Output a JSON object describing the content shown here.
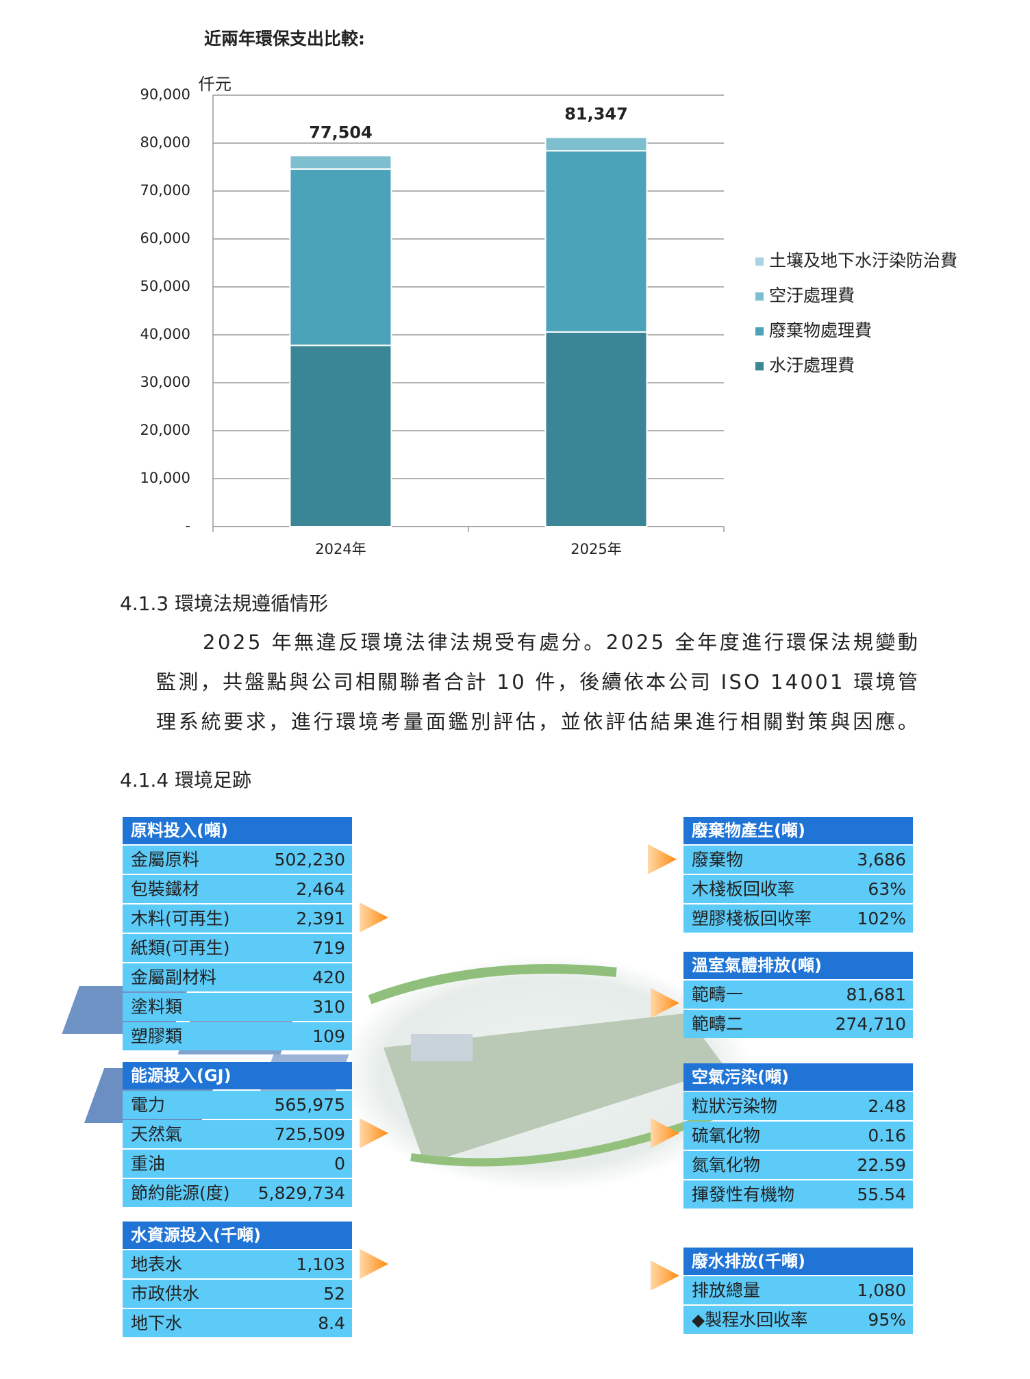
{
  "chart_data": {
    "type": "stacked_bar",
    "title": "近兩年環保支出比較:",
    "y_label": "仟元",
    "categories": [
      "2024年",
      "2025年"
    ],
    "series": [
      {
        "name": "水汙處理費",
        "color": "#3a8696",
        "values": [
          37800,
          40600
        ]
      },
      {
        "name": "廢棄物處理費",
        "color": "#4aa3b9",
        "values": [
          36800,
          37800
        ]
      },
      {
        "name": "空汙處理費",
        "color": "#7dbfcf",
        "values": [
          2800,
          2800
        ]
      },
      {
        "name": "土壤及地下水汙染防治費",
        "color": "#a9d5e2",
        "values": [
          104,
          147
        ]
      }
    ],
    "totals": [
      77504,
      81347
    ],
    "total_labels": [
      "77,504",
      "81,347"
    ],
    "ylim": [
      0,
      90000
    ],
    "yticks": [
      {
        "value": 0,
        "label": "-"
      },
      {
        "value": 10000,
        "label": "10,000"
      },
      {
        "value": 20000,
        "label": "20,000"
      },
      {
        "value": 30000,
        "label": "30,000"
      },
      {
        "value": 40000,
        "label": "40,000"
      },
      {
        "value": 50000,
        "label": "50,000"
      },
      {
        "value": 60000,
        "label": "60,000"
      },
      {
        "value": 70000,
        "label": "70,000"
      },
      {
        "value": 80000,
        "label": "80,000"
      },
      {
        "value": 90000,
        "label": "90,000"
      }
    ],
    "grid": true,
    "legend": "right"
  },
  "sections": [
    {
      "heading": "4.1.3 環境法規遵循情形",
      "lines": [
        "2025 年無違反環境法律法規受有處分。2025 全年度進行環保法規變動",
        "監測，共盤點與公司相關聯者合計 10 件，後續依本公司 ISO 14001 環境管",
        "理系統要求，進行環境考量面鑑別評估，並依評估結果進行相關對策與因應。"
      ]
    },
    {
      "heading": "4.1.4 環境足跡"
    }
  ],
  "infographic": {
    "left": [
      {
        "title": "原料投入(噸)",
        "rows": [
          [
            "金屬原料",
            "502,230"
          ],
          [
            "包裝鐵材",
            "2,464"
          ],
          [
            "木料(可再生)",
            "2,391"
          ],
          [
            "紙類(可再生)",
            "719"
          ],
          [
            "金屬副材料",
            "420"
          ],
          [
            "塗料類",
            "310"
          ],
          [
            "塑膠類",
            "109"
          ]
        ]
      },
      {
        "title": "能源投入(GJ)",
        "rows": [
          [
            "電力",
            "565,975"
          ],
          [
            "天然氣",
            "725,509"
          ],
          [
            "重油",
            "0"
          ],
          [
            "節約能源(度)",
            "5,829,734"
          ]
        ]
      },
      {
        "title": "水資源投入(千噸)",
        "rows": [
          [
            "地表水",
            "1,103"
          ],
          [
            "市政供水",
            "52"
          ],
          [
            "地下水",
            "8.4"
          ]
        ]
      }
    ],
    "right": [
      {
        "title": "廢棄物產生(噸)",
        "rows": [
          [
            "廢棄物",
            "3,686"
          ],
          [
            "木棧板回收率",
            "63%"
          ],
          [
            "塑膠棧板回收率",
            "102%"
          ]
        ]
      },
      {
        "title": "溫室氣體排放(噸)",
        "rows": [
          [
            "範疇一",
            "81,681"
          ],
          [
            "範疇二",
            "274,710"
          ]
        ]
      },
      {
        "title": "空氣污染(噸)",
        "rows": [
          [
            "粒狀污染物",
            "2.48"
          ],
          [
            "硫氧化物",
            "0.16"
          ],
          [
            "氮氧化物",
            "22.59"
          ],
          [
            "揮發性有機物",
            "55.54"
          ]
        ]
      },
      {
        "title": "廢水排放(千噸)",
        "rows": [
          [
            "排放總量",
            "1,080"
          ],
          [
            "◆製程水回收率",
            "95%"
          ]
        ]
      }
    ]
  }
}
